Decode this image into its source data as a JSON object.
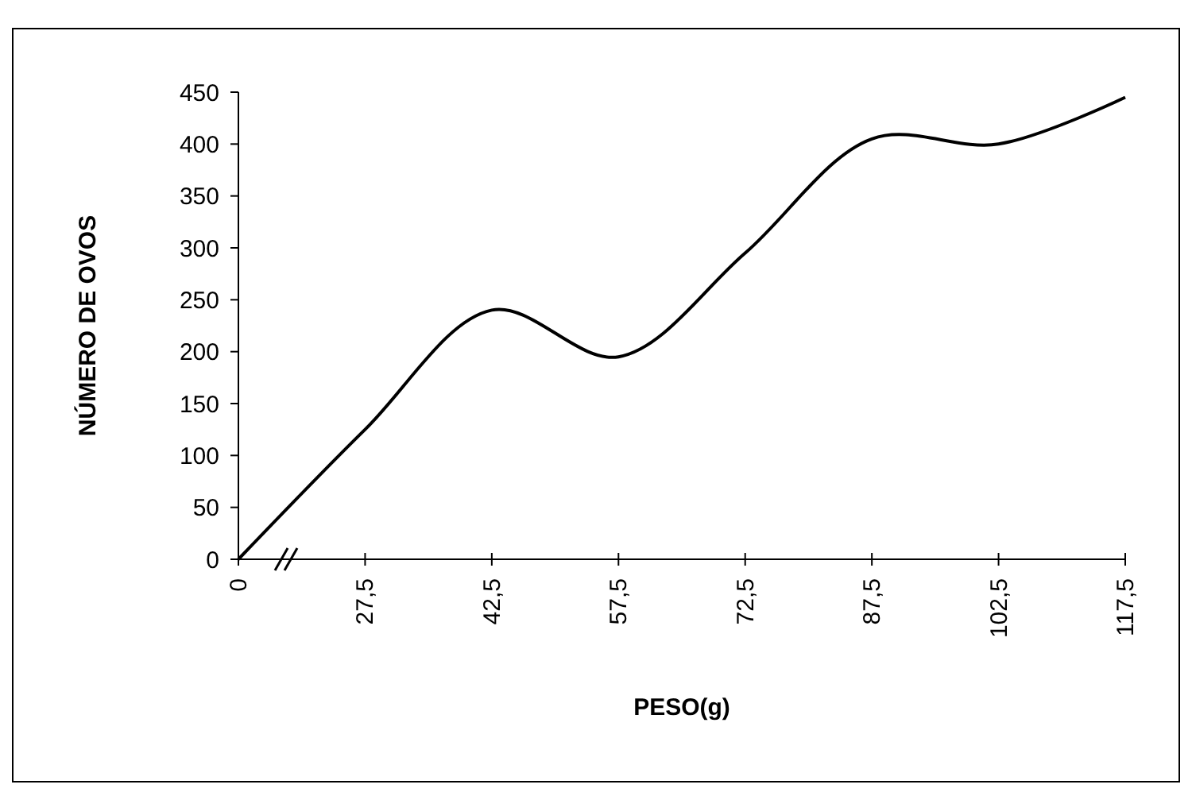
{
  "chart_data": {
    "type": "line",
    "xlabel": "PESO(g)",
    "ylabel": "NÚMERO DE OVOS",
    "categories": [
      "0",
      "27,5",
      "42,5",
      "57,5",
      "72,5",
      "87,5",
      "102,5",
      "117,5"
    ],
    "series": [
      {
        "color": "#000000",
        "values": [
          0,
          125,
          240,
          195,
          295,
          405,
          400,
          445
        ]
      }
    ],
    "ylim": [
      0,
      450
    ],
    "yticks": [
      0,
      50,
      100,
      150,
      200,
      250,
      300,
      350,
      400,
      450
    ],
    "grid": false,
    "marker": "none",
    "line_style": "solid"
  }
}
